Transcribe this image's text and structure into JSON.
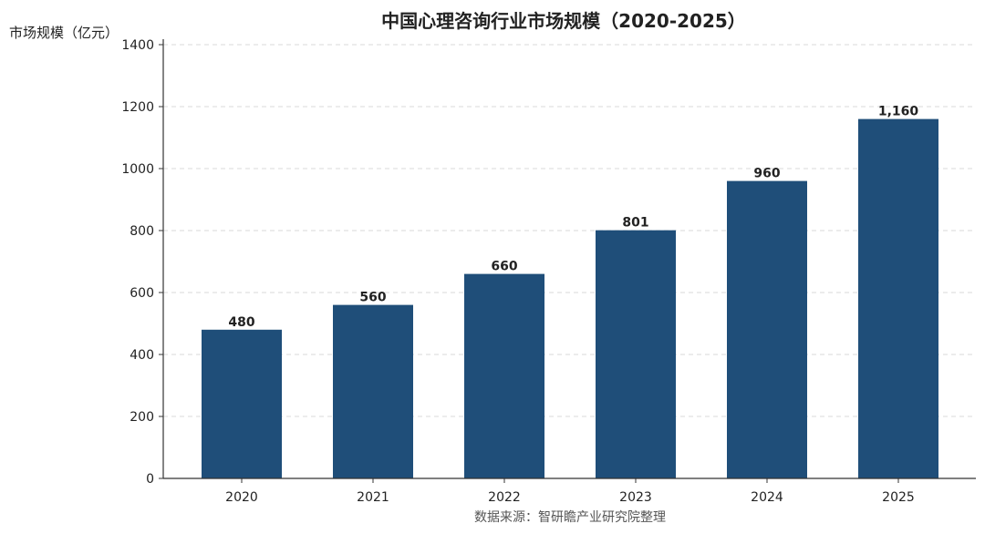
{
  "chart_data": {
    "type": "bar",
    "title": "中国心理咨询行业市场规模（2020-2025）",
    "ylabel": "市场规模（亿元）",
    "xlabel": "",
    "categories": [
      "2020",
      "2021",
      "2022",
      "2023",
      "2024",
      "2025"
    ],
    "values": [
      480,
      560,
      660,
      801,
      960,
      1160
    ],
    "value_labels": [
      "480",
      "560",
      "660",
      "801",
      "960",
      "1,160"
    ],
    "ylim": [
      0,
      1400
    ],
    "yticks": [
      0,
      200,
      400,
      600,
      800,
      1000,
      1200,
      1400
    ],
    "grid": "horizontal dashed",
    "bar_color": "#1f4e79",
    "source": "数据来源：智研瞻产业研究院整理"
  }
}
